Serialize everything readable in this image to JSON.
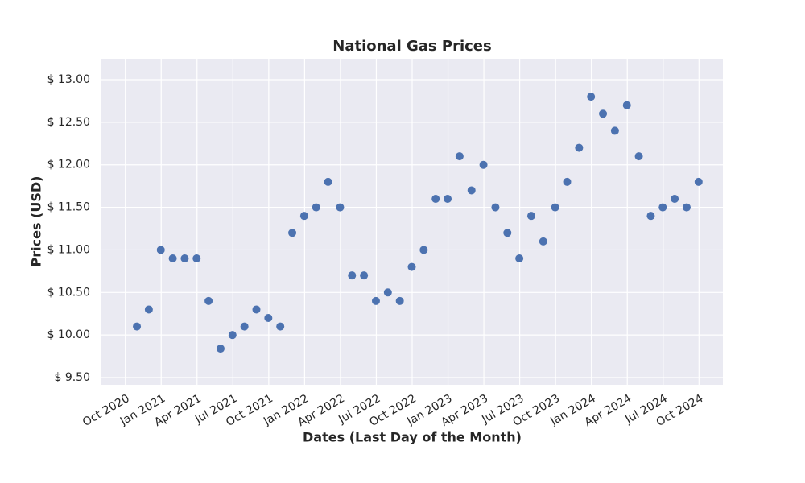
{
  "chart_data": {
    "type": "scatter",
    "title": "National Gas Prices",
    "x_label": "Dates (Last Day of the Month)",
    "y_label": "Prices (USD)",
    "x": [
      "2020-10",
      "2020-11",
      "2020-12",
      "2021-01",
      "2021-02",
      "2021-03",
      "2021-04",
      "2021-05",
      "2021-06",
      "2021-07",
      "2021-08",
      "2021-09",
      "2021-10",
      "2021-11",
      "2021-12",
      "2022-01",
      "2022-02",
      "2022-03",
      "2022-04",
      "2022-05",
      "2022-06",
      "2022-07",
      "2022-08",
      "2022-09",
      "2022-10",
      "2022-11",
      "2022-12",
      "2023-01",
      "2023-02",
      "2023-03",
      "2023-04",
      "2023-05",
      "2023-06",
      "2023-07",
      "2023-08",
      "2023-09",
      "2023-10",
      "2023-11",
      "2023-12",
      "2024-01",
      "2024-02",
      "2024-03",
      "2024-04",
      "2024-05",
      "2024-06",
      "2024-07",
      "2024-08",
      "2024-09"
    ],
    "series": [
      {
        "name": "Price",
        "color": "#4c72b0",
        "values": [
          10.1,
          10.3,
          11.0,
          10.9,
          10.9,
          10.9,
          10.4,
          9.84,
          10.0,
          10.1,
          10.3,
          10.2,
          10.1,
          11.2,
          11.4,
          11.5,
          11.8,
          11.5,
          10.7,
          10.7,
          10.4,
          10.5,
          10.4,
          10.8,
          11.0,
          11.6,
          11.6,
          12.1,
          11.7,
          12.0,
          11.5,
          11.2,
          10.9,
          11.4,
          11.1,
          11.5,
          11.8,
          12.2,
          12.8,
          12.6,
          12.4,
          12.7,
          12.1,
          11.4,
          11.5,
          11.6,
          11.5,
          11.8
        ]
      }
    ],
    "xlim": [
      "2020-08",
      "2024-12"
    ],
    "xticks": [
      {
        "value": "2020-10",
        "label": "Oct 2020"
      },
      {
        "value": "2021-01",
        "label": "Jan 2021"
      },
      {
        "value": "2021-04",
        "label": "Apr 2021"
      },
      {
        "value": "2021-07",
        "label": "Jul 2021"
      },
      {
        "value": "2021-10",
        "label": "Oct 2021"
      },
      {
        "value": "2022-01",
        "label": "Jan 2022"
      },
      {
        "value": "2022-04",
        "label": "Apr 2022"
      },
      {
        "value": "2022-07",
        "label": "Jul 2022"
      },
      {
        "value": "2022-10",
        "label": "Oct 2022"
      },
      {
        "value": "2023-01",
        "label": "Jan 2023"
      },
      {
        "value": "2023-04",
        "label": "Apr 2023"
      },
      {
        "value": "2023-07",
        "label": "Jul 2023"
      },
      {
        "value": "2023-10",
        "label": "Oct 2023"
      },
      {
        "value": "2024-01",
        "label": "Jan 2024"
      },
      {
        "value": "2024-04",
        "label": "Apr 2024"
      },
      {
        "value": "2024-07",
        "label": "Jul 2024"
      },
      {
        "value": "2024-10",
        "label": "Oct 2024"
      }
    ],
    "ylim": [
      9.415,
      13.246
    ],
    "yticks": [
      {
        "value": 9.5,
        "label": "$ 9.50"
      },
      {
        "value": 10,
        "label": "$ 10.00"
      },
      {
        "value": 10.5,
        "label": "$ 10.50"
      },
      {
        "value": 11,
        "label": "$ 11.00"
      },
      {
        "value": 11.5,
        "label": "$ 11.50"
      },
      {
        "value": 12,
        "label": "$ 12.00"
      },
      {
        "value": 12.5,
        "label": "$ 12.50"
      },
      {
        "value": 13,
        "label": "$ 13.00"
      }
    ],
    "grid": true
  }
}
